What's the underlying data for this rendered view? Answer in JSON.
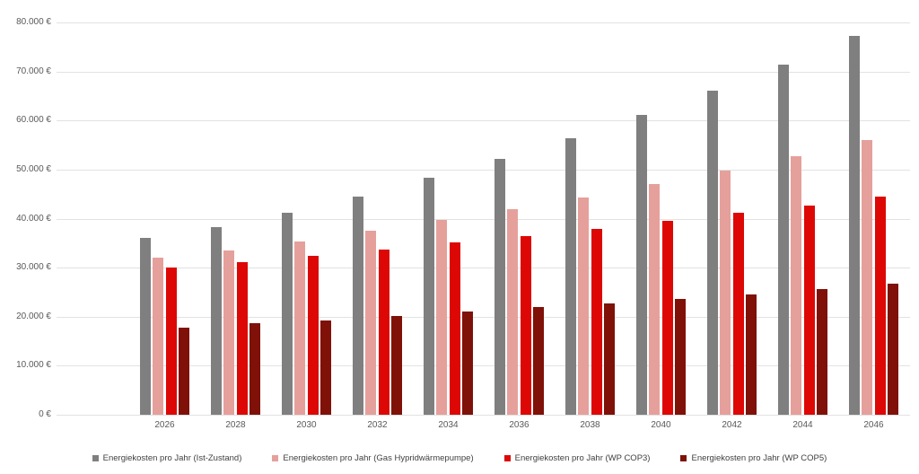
{
  "chart_data": {
    "type": "bar",
    "title": "",
    "xlabel": "",
    "ylabel": "",
    "ylim": [
      0,
      80000
    ],
    "ytick_step": 10000,
    "ytick_labels": [
      "0 €",
      "10.000 €",
      "20.000 €",
      "30.000 €",
      "40.000 €",
      "50.000 €",
      "60.000 €",
      "70.000 €",
      "80.000 €"
    ],
    "grid": true,
    "legend_position": "bottom",
    "categories": [
      "2026",
      "2028",
      "2030",
      "2032",
      "2034",
      "2036",
      "2038",
      "2040",
      "2042",
      "2044",
      "2046"
    ],
    "series": [
      {
        "name": "Energiekosten pro Jahr (Ist-Zustand)",
        "color": "#7f7f7f",
        "values": [
          36000,
          38200,
          41200,
          44500,
          48300,
          52200,
          56400,
          61100,
          66100,
          71400,
          77300
        ]
      },
      {
        "name": "Energiekosten pro Jahr (Gas Hypridwärmepumpe)",
        "color": "#e5a09c",
        "values": [
          32000,
          33600,
          35400,
          37500,
          39700,
          42000,
          44400,
          47000,
          49900,
          52800,
          56000
        ]
      },
      {
        "name": "Energiekosten pro Jahr (WP COP3)",
        "color": "#dd0806",
        "values": [
          30100,
          31100,
          32400,
          33700,
          35100,
          36500,
          38000,
          39500,
          41200,
          42700,
          44500
        ]
      },
      {
        "name": "Energiekosten pro Jahr (WP COP5)",
        "color": "#7f1108",
        "values": [
          17800,
          18600,
          19300,
          20200,
          21000,
          21900,
          22700,
          23700,
          24500,
          25600,
          26700
        ]
      }
    ]
  }
}
